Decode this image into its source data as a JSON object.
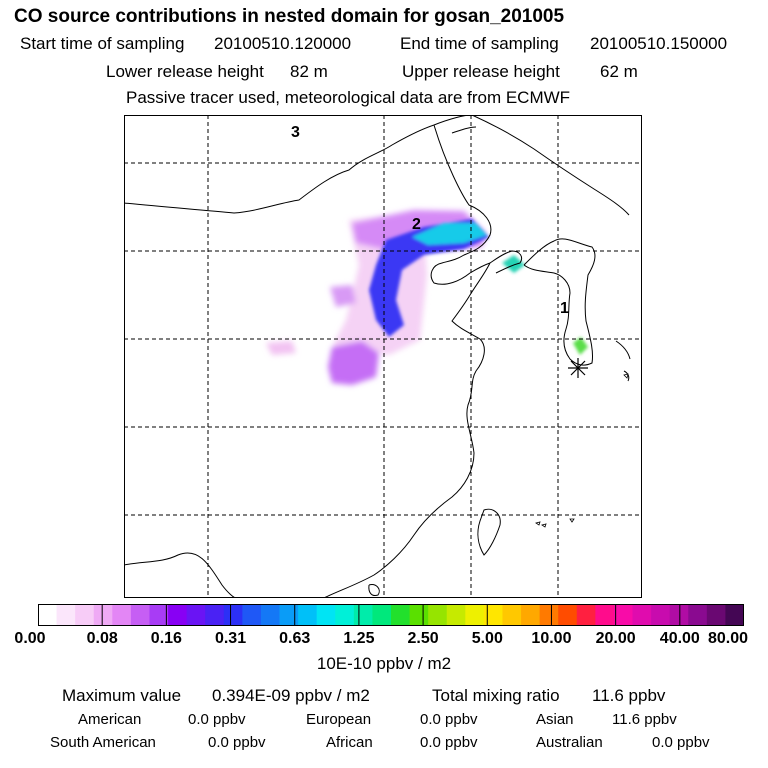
{
  "header": {
    "title": "CO  source contributions in nested domain for gosan_201005",
    "start_label": "Start time of sampling",
    "start_value": "20100510.120000",
    "end_label": "End time of sampling",
    "end_value": "20100510.150000",
    "lower_label": "Lower release height",
    "lower_value": "82 m",
    "upper_label": "Upper release height",
    "upper_value": "62 m",
    "note": "Passive tracer used, meteorological data are from ECMWF"
  },
  "map": {
    "markers": [
      "1",
      "2",
      "3"
    ],
    "colors": {
      "land_outline": "#000000",
      "grid": "#000000"
    }
  },
  "colorbar": {
    "colors": [
      "#ffffff",
      "#fbe6fb",
      "#f7ccf7",
      "#efaaf5",
      "#e386f5",
      "#c65ef4",
      "#a83cf5",
      "#8800f4",
      "#6a14f4",
      "#4a22f4",
      "#2c30f6",
      "#1f58f6",
      "#1478f6",
      "#0a9cf7",
      "#00c0f8",
      "#00e4f4",
      "#00f0d8",
      "#00ecaa",
      "#00e87c",
      "#22e02c",
      "#5ae000",
      "#96e400",
      "#c6ea00",
      "#eef000",
      "#ffe600",
      "#ffc800",
      "#ffa800",
      "#ff7a00",
      "#ff4c00",
      "#ff2040",
      "#ff0c8c",
      "#f80ca8",
      "#e00cae",
      "#c80cae",
      "#b00ca4",
      "#8a0a90",
      "#6a0872",
      "#440654"
    ],
    "ticks": [
      "0.00",
      "0.08",
      "0.16",
      "0.31",
      "0.63",
      "1.25",
      "2.50",
      "5.00",
      "10.00",
      "20.00",
      "40.00",
      "80.00"
    ],
    "unit": "10E-10 ppbv / m2"
  },
  "stats": {
    "max_label": "Maximum value",
    "max_value": "0.394E-09 ppbv / m2",
    "total_label": "Total mixing ratio",
    "total_value": "11.6 ppbv",
    "regions": [
      {
        "name": "American",
        "value": "0.0 ppbv"
      },
      {
        "name": "European",
        "value": "0.0 ppbv"
      },
      {
        "name": "Asian",
        "value": "11.6 ppbv"
      },
      {
        "name": "South American",
        "value": "0.0 ppbv"
      },
      {
        "name": "African",
        "value": "0.0 ppbv"
      },
      {
        "name": "Australian",
        "value": "0.0 ppbv"
      }
    ]
  }
}
